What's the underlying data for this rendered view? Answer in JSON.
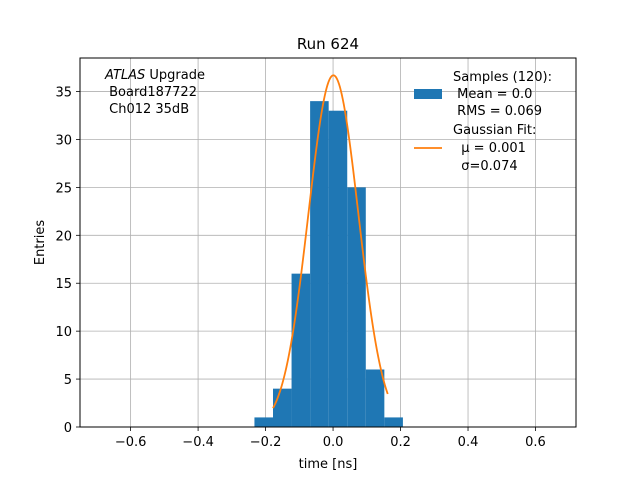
{
  "chart_data": {
    "type": "bar",
    "title": "Run 624",
    "xlabel": "time [ns]",
    "ylabel": "Entries",
    "xlim": [
      -0.75,
      0.72
    ],
    "ylim": [
      0,
      38.5
    ],
    "grid": true,
    "xticks": [
      -0.6,
      -0.4,
      -0.2,
      0.0,
      0.2,
      0.4,
      0.6
    ],
    "xtick_labels": [
      "−0.6",
      "−0.4",
      "−0.2",
      "0.0",
      "0.2",
      "0.4",
      "0.6"
    ],
    "yticks": [
      0,
      5,
      10,
      15,
      20,
      25,
      30,
      35
    ],
    "ytick_labels": [
      "0",
      "5",
      "10",
      "15",
      "20",
      "25",
      "30",
      "35"
    ],
    "bar_color": "#1f77b4",
    "fit_color": "#ff7f0e",
    "histogram": {
      "bin_edges": [
        -0.233,
        -0.178,
        -0.123,
        -0.068,
        -0.013,
        0.042,
        0.097,
        0.152,
        0.207
      ],
      "counts": [
        1,
        4,
        16,
        34,
        33,
        25,
        6,
        1
      ]
    },
    "gaussian_fit": {
      "mu": 0.001,
      "sigma": 0.074,
      "amplitude": 36.7,
      "x_range": [
        -0.178,
        0.162
      ]
    },
    "legend_position": "upper right",
    "legend": [
      {
        "kind": "bar",
        "lines": [
          "Samples (120):",
          " Mean = 0.0",
          " RMS = 0.069"
        ]
      },
      {
        "kind": "line",
        "lines": [
          "Gaussian Fit:",
          "  μ = 0.001",
          "  σ=0.074"
        ]
      }
    ],
    "annotation": {
      "italic": "ATLAS",
      "rest": " Upgrade",
      "lines": [
        " Board187722",
        " Ch012 35dB"
      ]
    }
  }
}
